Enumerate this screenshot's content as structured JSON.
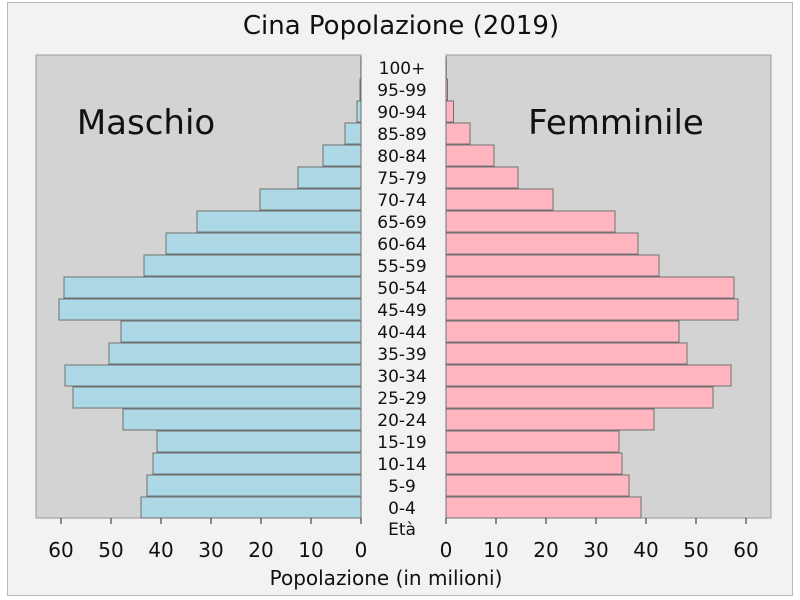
{
  "chart_data": {
    "type": "bar",
    "title": "Cina Popolazione (2019)",
    "xlabel": "Popolazione (in milioni)",
    "ylabel": "Età",
    "left_label": "Maschio",
    "right_label": "Femminile",
    "xlim": [
      0,
      65
    ],
    "xticks": [
      0,
      10,
      20,
      30,
      40,
      50,
      60
    ],
    "colors": {
      "male": "#add8e6",
      "female": "#ffb6c1",
      "panel": "#d3d3d3",
      "bar_edge": "#707070"
    },
    "categories": [
      "0-4",
      "5-9",
      "10-14",
      "15-19",
      "20-24",
      "25-29",
      "30-34",
      "35-39",
      "40-44",
      "45-49",
      "50-54",
      "55-59",
      "60-64",
      "65-69",
      "70-74",
      "75-79",
      "80-84",
      "85-89",
      "90-94",
      "95-99",
      "100+"
    ],
    "series": [
      {
        "name": "Maschio",
        "values": [
          44.0,
          42.8,
          41.6,
          40.8,
          47.6,
          57.6,
          59.2,
          50.4,
          48.0,
          60.4,
          59.4,
          43.4,
          39.0,
          32.8,
          20.2,
          12.6,
          7.6,
          3.2,
          0.8,
          0.2,
          0.03
        ]
      },
      {
        "name": "Femminile",
        "values": [
          39.0,
          36.6,
          35.2,
          34.6,
          41.6,
          53.4,
          57.0,
          48.2,
          46.6,
          58.4,
          57.6,
          42.6,
          38.4,
          33.8,
          21.4,
          14.4,
          9.6,
          4.8,
          1.5,
          0.3,
          0.05
        ]
      }
    ]
  }
}
